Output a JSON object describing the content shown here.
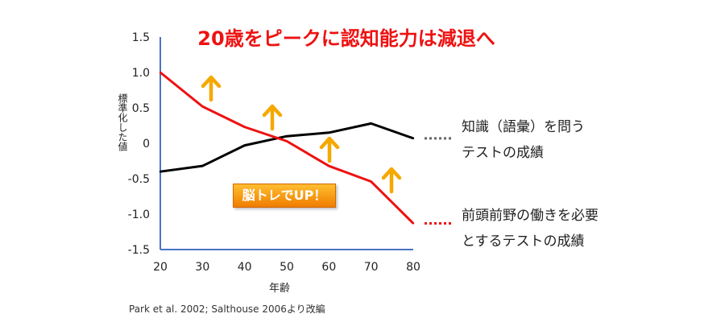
{
  "chart_data": {
    "type": "line",
    "title": "20歳をピークに認知能力は減退へ",
    "xlabel": "年齢",
    "ylabel": "標準化した値",
    "x": [
      20,
      30,
      40,
      50,
      60,
      70,
      80
    ],
    "x_ticks": [
      "20",
      "30",
      "40",
      "50",
      "60",
      "70",
      "80"
    ],
    "y_ticks": [
      "1.5",
      "1.0",
      "0.5",
      "0",
      "-0.5",
      "-1.0",
      "-1.5"
    ],
    "xlim": [
      20,
      80
    ],
    "ylim": [
      -1.5,
      1.5
    ],
    "grid": false,
    "series": [
      {
        "name": "知識（語彙）を問うテストの成績",
        "color": "#000000",
        "values": [
          -0.4,
          -0.32,
          -0.03,
          0.1,
          0.15,
          0.28,
          0.07
        ]
      },
      {
        "name": "前頭前野の働きを必要とするテストの成績",
        "color": "#ee1111",
        "values": [
          1.0,
          0.52,
          0.23,
          0.03,
          -0.32,
          -0.54,
          -1.13
        ]
      }
    ],
    "annotation": "脳トレでUP！",
    "arrows_color": "#f5a800"
  },
  "legend": {
    "black_lines": [
      "知識（語彙）を問う",
      "テストの成績"
    ],
    "red_lines": [
      "前頭前野の働きを必要",
      "とするテストの成績"
    ]
  },
  "source_note": "Park et al. 2002; Salthouse 2006より改編"
}
